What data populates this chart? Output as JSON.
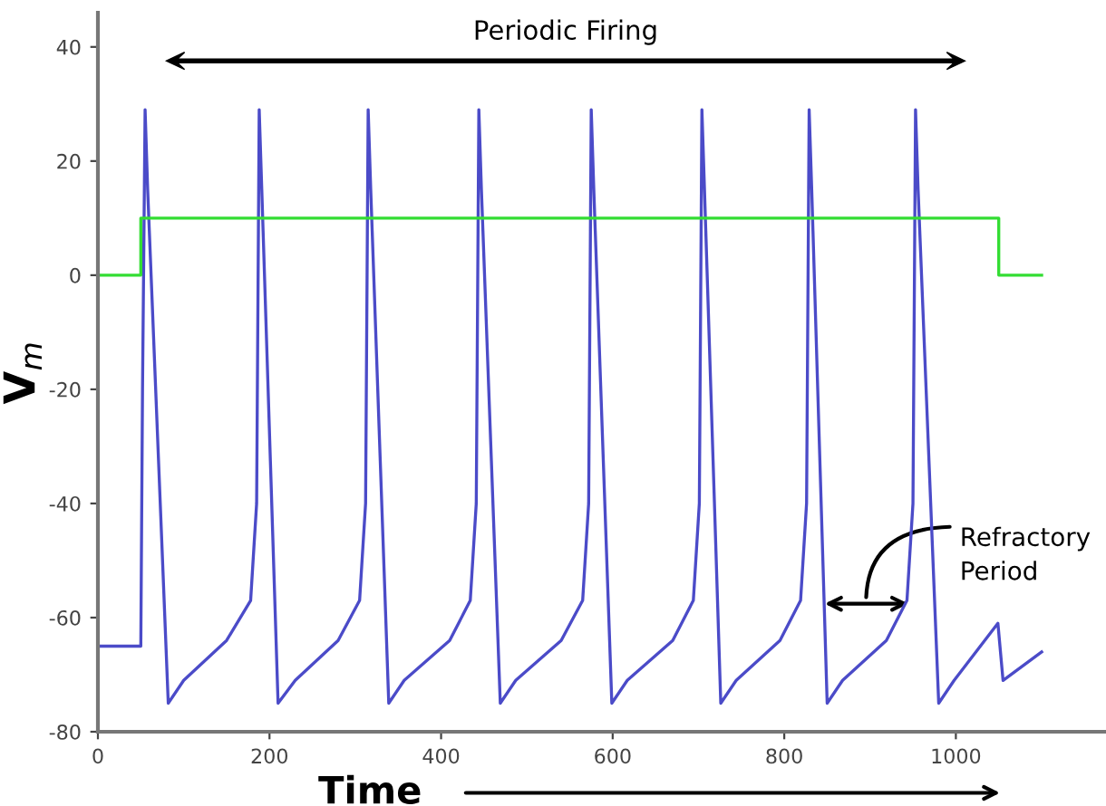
{
  "chart_data": {
    "type": "line",
    "xlabel": "Time",
    "ylabel": "V$_{m}$",
    "series": [
      {
        "color": "#4b4bc8",
        "x": [
          0,
          50,
          52,
          55,
          58,
          82,
          100,
          150,
          178,
          185,
          188,
          191,
          210,
          230,
          280,
          305,
          312,
          315,
          318,
          339,
          357,
          410,
          434,
          441,
          444,
          447,
          469,
          487,
          540,
          565,
          572,
          575,
          578,
          599,
          617,
          670,
          694,
          701,
          704,
          707,
          726,
          744,
          795,
          819,
          826,
          829,
          832,
          850,
          868,
          919,
          943,
          950,
          953,
          956,
          980,
          998,
          1049,
          1055,
          1100
        ],
        "values": [
          -65,
          -65,
          -20,
          29,
          15,
          -75,
          -71,
          -64,
          -57,
          -40,
          29,
          15,
          -75,
          -71,
          -64,
          -57,
          -40,
          29,
          15,
          -75,
          -71,
          -64,
          -57,
          -40,
          29,
          15,
          -75,
          -71,
          -64,
          -57,
          -40,
          29,
          15,
          -75,
          -71,
          -64,
          -57,
          -40,
          29,
          15,
          -75,
          -71,
          -64,
          -57,
          -40,
          29,
          15,
          -75,
          -71,
          -64,
          -57,
          -40,
          29,
          15,
          -75,
          -71,
          -61,
          -71,
          -66
        ]
      },
      {
        "color": "#33dd33",
        "x": [
          0,
          50,
          50,
          1050,
          1050,
          1100
        ],
        "values": [
          0,
          0,
          10,
          10,
          0,
          0
        ]
      }
    ],
    "xlim": [
      0,
      1175
    ],
    "ylim": [
      -80,
      46
    ],
    "xticks": [
      0,
      200,
      400,
      600,
      800,
      1000
    ],
    "yticks": [
      -80,
      -60,
      -40,
      -20,
      0,
      20,
      40
    ],
    "grid": false,
    "legend": false,
    "annotations": [
      "Periodic Firing",
      "Refractory\nPeriod"
    ]
  }
}
